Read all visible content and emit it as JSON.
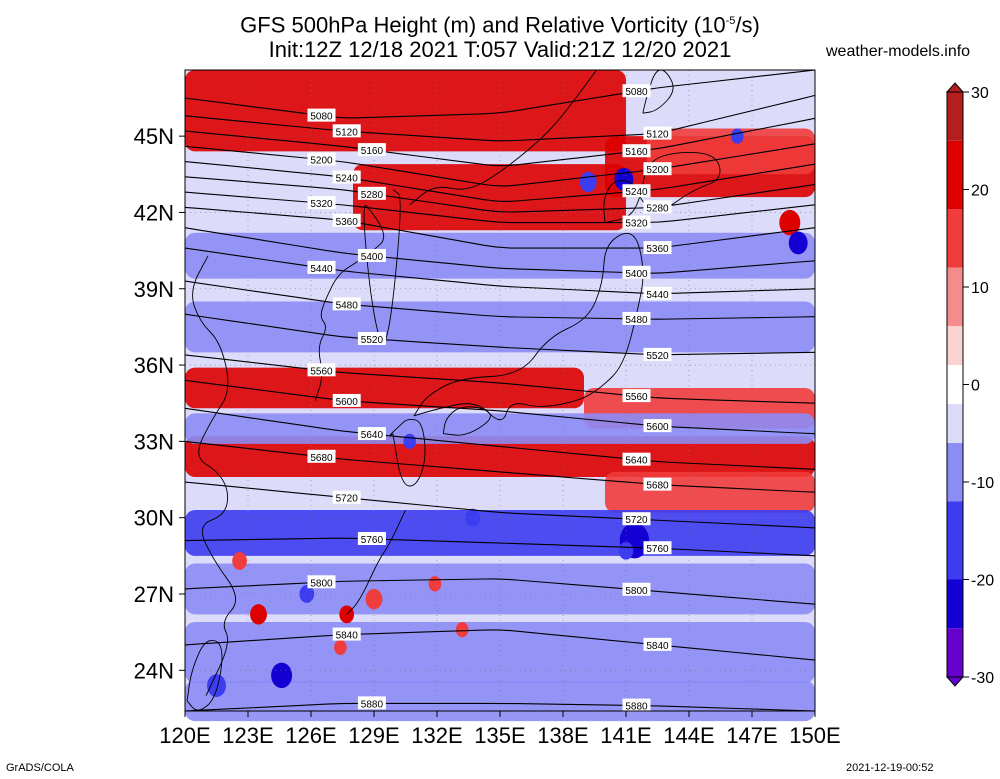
{
  "title_line1": "GFS 500hPa Height (m) and Relative Vorticity (10",
  "title_sup": "-5",
  "title_line1_end": "/s)",
  "title_line2": "Init:12Z 12/18 2021 T:057 Valid:21Z 12/20 2021",
  "site": "weather-models.info",
  "footer_left": "GrADS/COLA",
  "footer_right": "2021-12-19-00:52",
  "map": {
    "lon_labels": [
      "120E",
      "123E",
      "126E",
      "129E",
      "132E",
      "135E",
      "138E",
      "141E",
      "144E",
      "147E",
      "150E"
    ],
    "lon_values": [
      120,
      123,
      126,
      129,
      132,
      135,
      138,
      141,
      144,
      147,
      150
    ],
    "lat_labels": [
      "24N",
      "27N",
      "30N",
      "33N",
      "36N",
      "39N",
      "42N",
      "45N"
    ],
    "lat_values": [
      24,
      27,
      30,
      33,
      36,
      39,
      42,
      45
    ],
    "lon_range": [
      120,
      150
    ],
    "lat_range": [
      22.4,
      47.6
    ],
    "colorbar": {
      "labels": [
        "30",
        "20",
        "10",
        "0",
        "-10",
        "-20",
        "-30"
      ],
      "values": [
        30,
        20,
        10,
        0,
        -10,
        -20,
        -30
      ],
      "colors": [
        "#6600cc",
        "#1400d2",
        "#3c3cf0",
        "#8c8cf5",
        "#dcdcfa",
        "#ffffff",
        "#fad2d2",
        "#f58c8c",
        "#f03c3c",
        "#dc0000",
        "#b41e1e"
      ]
    },
    "contours": [
      {
        "label": "5080",
        "lat": [
          46.5,
          45.7,
          45.9,
          46.9,
          47.6
        ]
      },
      {
        "label": "5120",
        "lat": [
          45.8,
          45.2,
          44.8,
          45.1,
          46.6
        ]
      },
      {
        "label": "5160",
        "lat": [
          45.2,
          44.6,
          43.8,
          44.5,
          45.7
        ]
      },
      {
        "label": "5200",
        "lat": [
          44.6,
          44.0,
          43.0,
          43.7,
          44.7
        ]
      },
      {
        "label": "5240",
        "lat": [
          44.0,
          43.4,
          42.4,
          42.9,
          43.9
        ]
      },
      {
        "label": "5280",
        "lat": [
          43.4,
          42.9,
          42.0,
          42.2,
          43.1
        ]
      },
      {
        "label": "5320",
        "lat": [
          42.8,
          42.3,
          41.6,
          41.6,
          42.3
        ]
      },
      {
        "label": "5360",
        "lat": [
          42.2,
          41.7,
          40.6,
          40.6,
          41.4
        ]
      },
      {
        "label": "5400",
        "lat": [
          41.4,
          40.4,
          39.8,
          39.6,
          40.1
        ]
      },
      {
        "label": "5440",
        "lat": [
          40.6,
          39.7,
          39.1,
          38.8,
          39.0
        ]
      },
      {
        "label": "5480",
        "lat": [
          39.3,
          38.4,
          37.9,
          37.8,
          37.9
        ]
      },
      {
        "label": "5520",
        "lat": [
          38.0,
          37.1,
          36.7,
          36.4,
          36.5
        ]
      },
      {
        "label": "5560",
        "lat": [
          36.4,
          35.7,
          35.3,
          34.7,
          34.5
        ]
      },
      {
        "label": "5600",
        "lat": [
          35.4,
          34.6,
          34.2,
          33.6,
          33.3
        ]
      },
      {
        "label": "5640",
        "lat": [
          34.3,
          33.4,
          32.8,
          32.2,
          31.9
        ]
      },
      {
        "label": "5680",
        "lat": [
          33.0,
          32.3,
          31.8,
          31.3,
          31.0
        ]
      },
      {
        "label": "5720",
        "lat": [
          31.4,
          30.8,
          30.2,
          29.9,
          29.6
        ]
      },
      {
        "label": "5760",
        "lat": [
          29.1,
          29.2,
          29.0,
          28.8,
          28.5
        ]
      },
      {
        "label": "5800",
        "lat": [
          27.2,
          27.5,
          27.6,
          27.1,
          26.6
        ]
      },
      {
        "label": "5840",
        "lat": [
          25.0,
          25.4,
          25.6,
          25.0,
          24.4
        ]
      },
      {
        "label": "5880",
        "lat": [
          22.4,
          22.7,
          22.7,
          22.6,
          22.4
        ]
      }
    ],
    "bands": [
      {
        "lat": 46.0,
        "half": 1.6,
        "vort": 22,
        "lon": [
          120,
          141
        ]
      },
      {
        "lat": 43.8,
        "half": 1.2,
        "vort": 20,
        "lon": [
          140,
          150
        ]
      },
      {
        "lat": 42.6,
        "half": 1.3,
        "vort": 20,
        "lon": [
          128,
          141
        ]
      },
      {
        "lat": 44.4,
        "half": 0.9,
        "vort": 14,
        "lon": [
          142,
          150
        ]
      },
      {
        "lat": 40.3,
        "half": 0.9,
        "vort": -9,
        "lon": [
          120,
          150
        ]
      },
      {
        "lat": 37.5,
        "half": 1.0,
        "vort": -10,
        "lon": [
          120,
          150
        ]
      },
      {
        "lat": 35.1,
        "half": 0.8,
        "vort": 23,
        "lon": [
          120,
          139
        ]
      },
      {
        "lat": 34.3,
        "half": 0.8,
        "vort": 12,
        "lon": [
          139,
          150
        ]
      },
      {
        "lat": 32.4,
        "half": 0.8,
        "vort": 22,
        "lon": [
          120,
          150
        ]
      },
      {
        "lat": 31.0,
        "half": 0.8,
        "vort": 16,
        "lon": [
          140,
          150
        ]
      },
      {
        "lat": 33.5,
        "half": 0.6,
        "vort": -7,
        "lon": [
          120,
          150
        ]
      },
      {
        "lat": 29.4,
        "half": 0.9,
        "vort": -13,
        "lon": [
          120,
          150
        ]
      },
      {
        "lat": 27.2,
        "half": 1.0,
        "vort": -9,
        "lon": [
          120,
          150
        ]
      },
      {
        "lat": 24.7,
        "half": 1.2,
        "vort": -10,
        "lon": [
          120,
          150
        ]
      },
      {
        "lat": 22.8,
        "half": 0.8,
        "vort": -9,
        "lon": [
          120,
          150
        ]
      }
    ],
    "blobs": [
      {
        "lon": 141.4,
        "lat": 29.1,
        "r": 0.7,
        "vort": -24
      },
      {
        "lon": 148.8,
        "lat": 41.6,
        "r": 0.5,
        "vort": 22
      },
      {
        "lon": 149.2,
        "lat": 40.8,
        "r": 0.45,
        "vort": -20
      },
      {
        "lon": 139.2,
        "lat": 43.2,
        "r": 0.4,
        "vort": -18
      },
      {
        "lon": 140.9,
        "lat": 43.3,
        "r": 0.45,
        "vort": -20
      },
      {
        "lon": 123.5,
        "lat": 26.2,
        "r": 0.4,
        "vort": 18
      },
      {
        "lon": 125.8,
        "lat": 27.0,
        "r": 0.35,
        "vort": -18
      },
      {
        "lon": 127.7,
        "lat": 26.2,
        "r": 0.35,
        "vort": 18
      },
      {
        "lon": 124.6,
        "lat": 23.8,
        "r": 0.5,
        "vort": -20
      },
      {
        "lon": 121.5,
        "lat": 23.4,
        "r": 0.45,
        "vort": -18
      },
      {
        "lon": 129.0,
        "lat": 26.8,
        "r": 0.4,
        "vort": 16
      },
      {
        "lon": 133.7,
        "lat": 30.0,
        "r": 0.35,
        "vort": -17
      },
      {
        "lon": 122.6,
        "lat": 28.3,
        "r": 0.35,
        "vort": 14
      },
      {
        "lon": 127.4,
        "lat": 24.9,
        "r": 0.3,
        "vort": 16
      },
      {
        "lon": 131.9,
        "lat": 27.4,
        "r": 0.3,
        "vort": 12
      },
      {
        "lon": 133.2,
        "lat": 25.6,
        "r": 0.3,
        "vort": 14
      },
      {
        "lon": 130.7,
        "lat": 33.0,
        "r": 0.3,
        "vort": -14
      },
      {
        "lon": 141.0,
        "lat": 28.7,
        "r": 0.35,
        "vort": -16
      },
      {
        "lon": 146.3,
        "lat": 45.0,
        "r": 0.3,
        "vort": -12
      }
    ],
    "coastlines": [
      {
        "name": "korea",
        "lon": [
          126.2,
          126.6,
          126.3,
          126.8,
          126.4,
          126.7,
          127.3,
          128.3,
          129.1,
          129.5,
          129.4,
          128.9,
          128.4,
          128.9,
          129.6,
          130.4,
          129.9
        ],
        "lat": [
          34.6,
          35.6,
          36.7,
          37.5,
          37.9,
          38.6,
          39.6,
          40.1,
          40.6,
          40.9,
          41.4,
          42.0,
          42.5,
          38.1,
          36.1,
          42.6,
          42.9
        ]
      },
      {
        "name": "china-coast",
        "lon": [
          121.0,
          122.2,
          121.7,
          122.7,
          121.3,
          120.6,
          121.9,
          122.1,
          121.6,
          120.4,
          121.3,
          122.2,
          121.7,
          120.7,
          120.2,
          121.1
        ],
        "lat": [
          23.0,
          25.1,
          25.9,
          26.8,
          28.4,
          29.7,
          30.1,
          31.0,
          31.8,
          32.4,
          33.9,
          35.0,
          36.9,
          37.7,
          38.9,
          40.3
        ]
      },
      {
        "name": "taiwan",
        "lon": [
          120.1,
          120.6,
          121.5,
          121.9,
          121.0,
          120.3,
          120.1
        ],
        "lat": [
          22.8,
          22.3,
          22.9,
          25.0,
          25.3,
          24.0,
          22.8
        ]
      },
      {
        "name": "kyushu",
        "lon": [
          129.9,
          130.3,
          131.0,
          131.5,
          131.3,
          130.6,
          130.2,
          129.7,
          129.9
        ],
        "lat": [
          33.3,
          31.3,
          31.2,
          32.3,
          33.8,
          33.9,
          33.6,
          33.2,
          33.3
        ]
      },
      {
        "name": "shikoku",
        "lon": [
          132.3,
          133.4,
          134.7,
          134.3,
          133.1,
          132.4,
          132.3
        ],
        "lat": [
          33.3,
          33.2,
          33.9,
          34.3,
          34.4,
          33.9,
          33.3
        ]
      },
      {
        "name": "honshu",
        "lon": [
          130.9,
          132.1,
          133.9,
          135.1,
          135.5,
          136.9,
          138.8,
          139.8,
          140.9,
          141.6,
          141.9,
          141.4,
          140.0,
          139.9,
          139.2,
          137.3,
          136.0,
          133.1,
          131.5,
          130.9
        ],
        "lat": [
          34.0,
          34.3,
          34.6,
          33.6,
          34.6,
          34.3,
          34.6,
          35.1,
          36.0,
          38.3,
          39.7,
          41.4,
          40.8,
          39.2,
          37.8,
          37.1,
          35.6,
          35.5,
          34.8,
          34.0
        ]
      },
      {
        "name": "hokkaido",
        "lon": [
          140.0,
          141.2,
          141.7,
          142.0,
          143.4,
          145.3,
          145.6,
          144.2,
          142.7,
          141.8,
          141.4,
          140.4,
          139.9,
          140.0
        ],
        "lat": [
          41.6,
          41.8,
          42.6,
          44.0,
          44.4,
          44.3,
          43.3,
          42.9,
          42.0,
          42.3,
          43.2,
          43.3,
          42.5,
          41.6
        ]
      },
      {
        "name": "sakhalin",
        "lon": [
          141.8,
          142.5,
          143.4,
          142.9,
          142.4,
          142.0,
          141.8
        ],
        "lat": [
          45.9,
          46.0,
          46.8,
          47.6,
          47.6,
          46.6,
          45.9
        ]
      },
      {
        "name": "primorye",
        "lon": [
          130.7,
          131.9,
          133.5,
          135.4,
          137.4,
          138.8,
          139.6
        ],
        "lat": [
          42.3,
          43.1,
          42.8,
          43.8,
          45.2,
          46.7,
          47.6
        ]
      },
      {
        "name": "ryukyu",
        "lon": [
          127.7,
          128.3,
          129.2,
          129.7,
          130.5
        ],
        "lat": [
          26.2,
          26.7,
          28.3,
          28.9,
          30.3
        ]
      }
    ]
  }
}
